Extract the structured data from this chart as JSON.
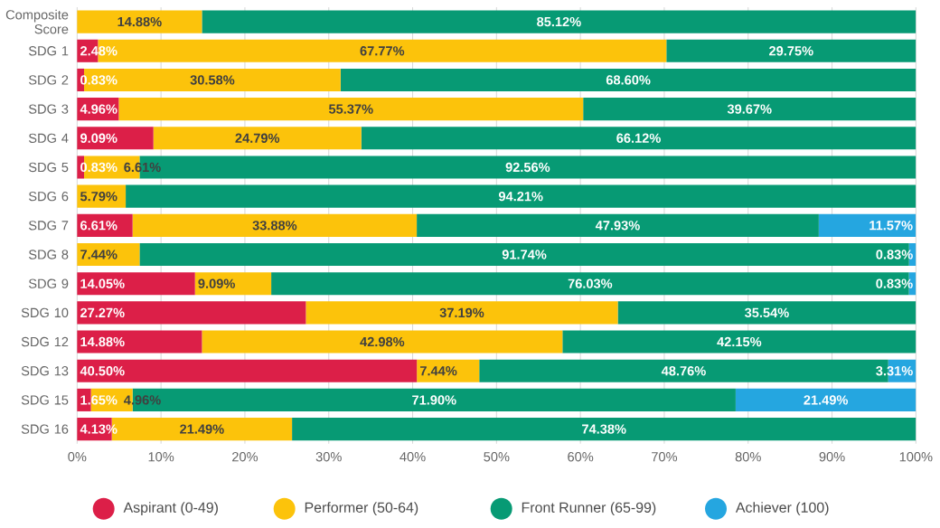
{
  "chart_data": {
    "type": "bar",
    "orientation": "horizontal",
    "stacked": true,
    "categories": [
      "Composite Score",
      "SDG 1",
      "SDG 2",
      "SDG 3",
      "SDG 4",
      "SDG 5",
      "SDG 6",
      "SDG 7",
      "SDG 8",
      "SDG 9",
      "SDG 10",
      "SDG 12",
      "SDG 13",
      "SDG 15",
      "SDG 16"
    ],
    "series": [
      {
        "name": "Aspirant (0-49)",
        "color": "#dc1f48",
        "values": [
          0,
          2.48,
          0.83,
          4.96,
          9.09,
          0.83,
          0,
          6.61,
          0,
          14.05,
          27.27,
          14.88,
          40.5,
          1.65,
          4.13
        ],
        "value_labels": [
          null,
          "2.48%",
          "0.83%",
          "4.96%",
          "9.09%",
          "0.83%",
          null,
          "6.61%",
          null,
          "14.05%",
          "27.27%",
          "14.88%",
          "40.50%",
          "1.65%",
          "4.13%"
        ]
      },
      {
        "name": "Performer (50-64)",
        "color": "#fcc30b",
        "values": [
          14.88,
          67.77,
          30.58,
          55.37,
          24.79,
          6.61,
          5.79,
          33.88,
          7.44,
          9.09,
          37.19,
          42.98,
          7.44,
          4.96,
          21.49
        ],
        "value_labels": [
          "14.88%",
          "67.77%",
          "30.58%",
          "55.37%",
          "24.79%",
          "6.61%",
          "5.79%",
          "33.88%",
          "7.44%",
          "9.09%",
          "37.19%",
          "42.98%",
          "7.44%",
          "4.96%",
          "21.49%"
        ]
      },
      {
        "name": "Front Runner (65-99)",
        "color": "#079a74",
        "values": [
          85.12,
          29.75,
          68.6,
          39.67,
          66.12,
          92.56,
          94.21,
          47.93,
          91.74,
          76.03,
          35.54,
          42.15,
          48.76,
          71.9,
          74.38
        ],
        "value_labels": [
          "85.12%",
          "29.75%",
          "68.60%",
          "39.67%",
          "66.12%",
          "92.56%",
          "94.21%",
          "47.93%",
          "91.74%",
          "76.03%",
          "35.54%",
          "42.15%",
          "48.76%",
          "71.90%",
          "74.38%"
        ]
      },
      {
        "name": "Achiever (100)",
        "color": "#25a6e0",
        "values": [
          0,
          0,
          0,
          0,
          0,
          0,
          0,
          11.57,
          0.83,
          0.83,
          0,
          0,
          3.31,
          21.49,
          0
        ],
        "value_labels": [
          null,
          null,
          null,
          null,
          null,
          null,
          null,
          "11.57%",
          "0.83%",
          "0.83%",
          null,
          null,
          "3.31%",
          "21.49%",
          null
        ]
      }
    ],
    "xlim": [
      0,
      100
    ],
    "xticks": [
      {
        "value": 0,
        "label": "0%"
      },
      {
        "value": 10,
        "label": "10%"
      },
      {
        "value": 20,
        "label": "20%"
      },
      {
        "value": 30,
        "label": "30%"
      },
      {
        "value": 40,
        "label": "40%"
      },
      {
        "value": 50,
        "label": "50%"
      },
      {
        "value": 60,
        "label": "60%"
      },
      {
        "value": 70,
        "label": "70%"
      },
      {
        "value": 80,
        "label": "80%"
      },
      {
        "value": 90,
        "label": "90%"
      },
      {
        "value": 100,
        "label": "100%"
      }
    ],
    "grid": "x",
    "legend": "bottom"
  }
}
